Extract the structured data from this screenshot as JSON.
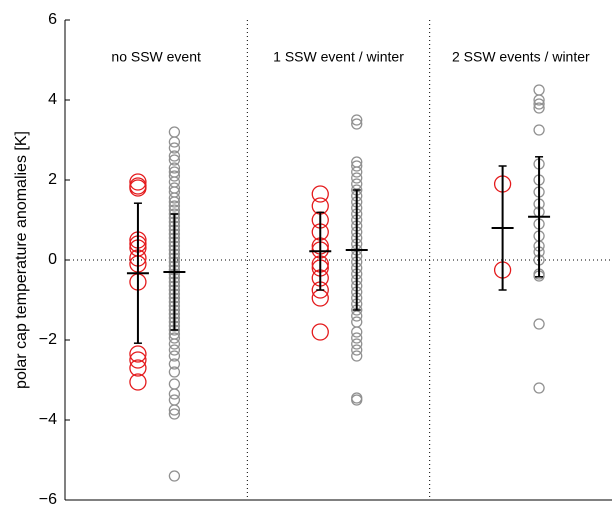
{
  "chart_data": {
    "type": "strip",
    "ylabel": "polar cap temperature anomalies [K]",
    "ylim": [
      -6,
      6
    ],
    "yticks": [
      {
        "value": -6,
        "label": "−6"
      },
      {
        "value": -4,
        "label": "−4"
      },
      {
        "value": -2,
        "label": "−2"
      },
      0,
      2,
      4,
      6
    ],
    "groups": [
      {
        "label": "no SSW event",
        "series": [
          {
            "color": "#e41a1c",
            "values": [
              1.95,
              1.85,
              1.8,
              0.5,
              0.4,
              0.3,
              0.05,
              -0.1,
              -0.55,
              -2.35,
              -2.5,
              -2.7,
              -3.05
            ],
            "mean": -0.33,
            "error": 1.75
          },
          {
            "color": "#909090",
            "values": [
              3.2,
              2.95,
              2.8,
              2.6,
              2.5,
              2.3,
              2.2,
              2.1,
              1.95,
              1.8,
              1.7,
              1.55,
              1.45,
              1.35,
              1.25,
              1.15,
              1.05,
              0.95,
              0.85,
              0.75,
              0.65,
              0.55,
              0.45,
              0.35,
              0.25,
              0.15,
              0.05,
              -0.05,
              -0.15,
              -0.25,
              -0.35,
              -0.45,
              -0.55,
              -0.65,
              -0.75,
              -0.85,
              -0.95,
              -1.05,
              -1.15,
              -1.25,
              -1.35,
              -1.45,
              -1.55,
              -1.65,
              -1.75,
              -1.85,
              -1.95,
              -2.1,
              -2.25,
              -2.4,
              -2.6,
              -2.8,
              -3.1,
              -3.35,
              -3.5,
              -3.75,
              -3.85,
              -5.4
            ],
            "mean": -0.3,
            "error": 1.45
          }
        ]
      },
      {
        "label": "1 SSW event / winter",
        "series": [
          {
            "color": "#e41a1c",
            "values": [
              1.65,
              1.35,
              1.0,
              0.7,
              0.35,
              0.25,
              -0.1,
              -0.2,
              -0.45,
              -0.75,
              -0.95,
              -1.8
            ],
            "mean": 0.22,
            "error": 0.97
          },
          {
            "color": "#909090",
            "values": [
              3.5,
              3.4,
              2.45,
              2.35,
              2.2,
              2.05,
              1.9,
              1.75,
              1.6,
              1.45,
              1.3,
              1.15,
              1.0,
              0.85,
              0.7,
              0.55,
              0.4,
              0.25,
              0.1,
              -0.05,
              -0.2,
              -0.35,
              -0.5,
              -0.65,
              -0.8,
              -0.95,
              -1.1,
              -1.25,
              -1.4,
              -1.55,
              -1.8,
              -1.95,
              -2.1,
              -2.25,
              -2.4,
              -3.45,
              -3.5
            ],
            "mean": 0.25,
            "error": 1.5
          }
        ]
      },
      {
        "label": "2 SSW events / winter",
        "series": [
          {
            "color": "#e41a1c",
            "values": [
              1.9,
              -0.25
            ],
            "mean": 0.8,
            "error": 1.55
          },
          {
            "color": "#909090",
            "values": [
              4.25,
              4.0,
              3.9,
              3.8,
              3.25,
              2.4,
              2.0,
              1.7,
              1.4,
              1.2,
              0.9,
              0.6,
              0.35,
              0.2,
              0.0,
              -0.35,
              -0.4,
              -1.6,
              -3.2
            ],
            "mean": 1.08,
            "error": 1.5
          }
        ]
      }
    ]
  }
}
